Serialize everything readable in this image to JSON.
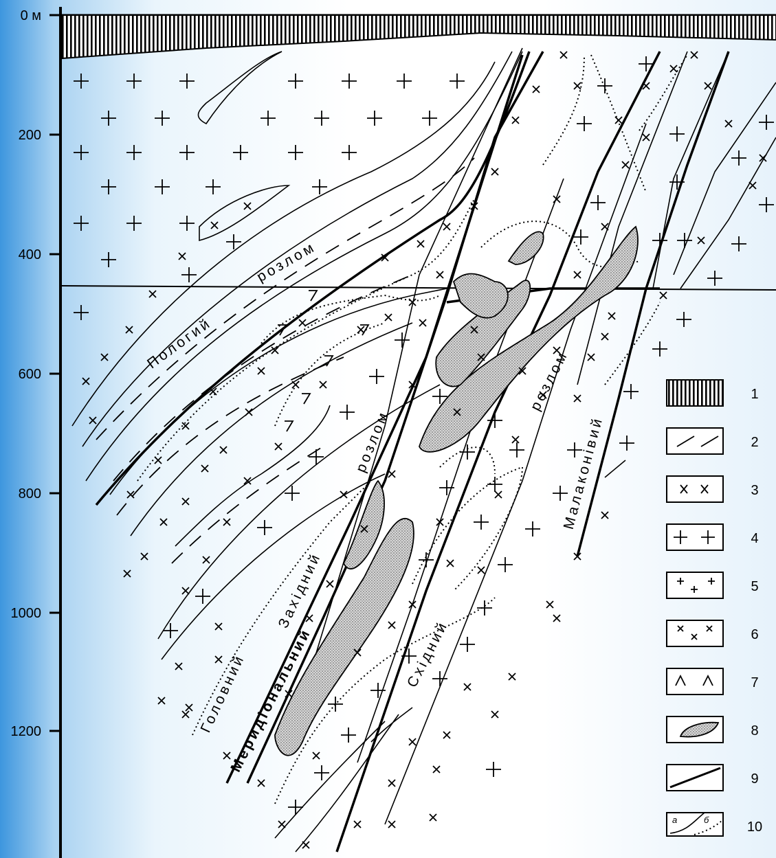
{
  "depth_axis": {
    "labels": [
      "0 м",
      "200",
      "400",
      "600",
      "800",
      "1000",
      "1200"
    ]
  },
  "faults": [
    {
      "label": "Пологий"
    },
    {
      "label": "розлом"
    },
    {
      "label": "розлом"
    },
    {
      "label": "Західний"
    },
    {
      "label": "Головний"
    },
    {
      "label": "Меридіональний"
    },
    {
      "label": "Східний"
    },
    {
      "label": "розлом"
    },
    {
      "label": "Малаконівий"
    }
  ],
  "legend": {
    "items": [
      "1",
      "2",
      "3",
      "4",
      "5",
      "6",
      "7",
      "8",
      "9",
      "10"
    ],
    "sublabels": [
      "а",
      "б"
    ]
  }
}
